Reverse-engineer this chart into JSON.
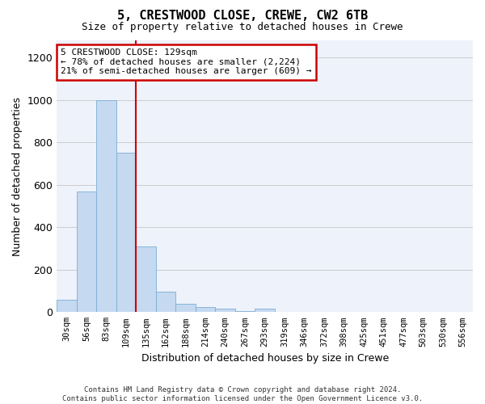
{
  "title1": "5, CRESTWOOD CLOSE, CREWE, CW2 6TB",
  "title2": "Size of property relative to detached houses in Crewe",
  "xlabel": "Distribution of detached houses by size in Crewe",
  "ylabel": "Number of detached properties",
  "bar_labels": [
    "30sqm",
    "56sqm",
    "83sqm",
    "109sqm",
    "135sqm",
    "162sqm",
    "188sqm",
    "214sqm",
    "240sqm",
    "267sqm",
    "293sqm",
    "319sqm",
    "346sqm",
    "372sqm",
    "398sqm",
    "425sqm",
    "451sqm",
    "477sqm",
    "503sqm",
    "530sqm",
    "556sqm"
  ],
  "bar_values": [
    60,
    570,
    1000,
    750,
    310,
    95,
    38,
    25,
    15,
    5,
    15,
    0,
    0,
    0,
    0,
    0,
    0,
    0,
    0,
    0,
    0
  ],
  "bar_color": "#c5d9f0",
  "bar_edge_color": "#7badd4",
  "annotation_text": "5 CRESTWOOD CLOSE: 129sqm\n← 78% of detached houses are smaller (2,224)\n21% of semi-detached houses are larger (609) →",
  "annotation_box_color": "#ffffff",
  "annotation_box_edge": "#cc0000",
  "footer1": "Contains HM Land Registry data © Crown copyright and database right 2024.",
  "footer2": "Contains public sector information licensed under the Open Government Licence v3.0.",
  "ylim": [
    0,
    1280
  ],
  "yticks": [
    0,
    200,
    400,
    600,
    800,
    1000,
    1200
  ],
  "figsize": [
    6.0,
    5.0
  ],
  "dpi": 100,
  "bg_color": "#ffffff",
  "plot_bg_color": "#eef2fb"
}
